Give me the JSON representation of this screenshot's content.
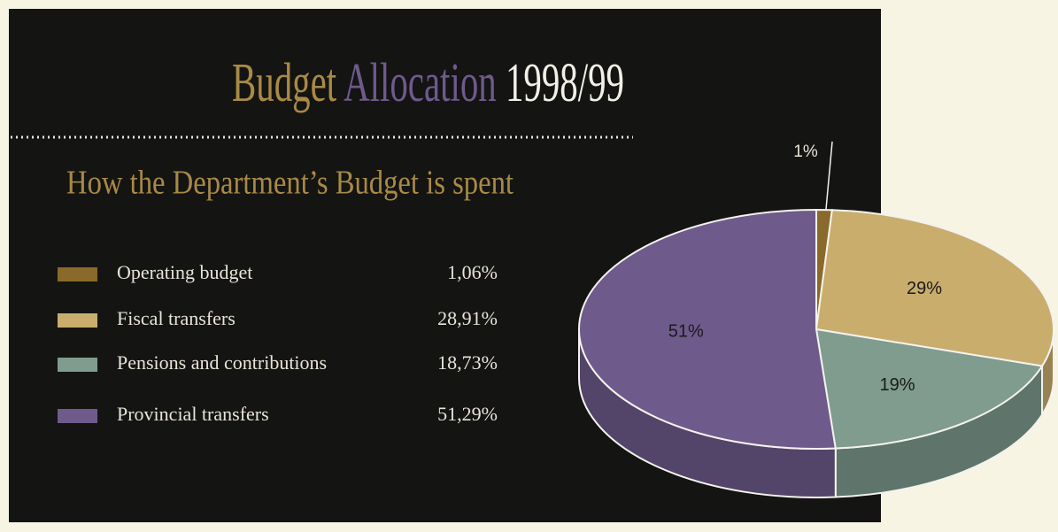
{
  "chart_data": {
    "type": "pie",
    "title": [
      {
        "text": "Budget",
        "color": "#a98a45"
      },
      {
        "text": "Allocation",
        "color": "#6e5a8c"
      },
      {
        "text": "1998/99",
        "color": "#f2efe6"
      }
    ],
    "subtitle": "How the Department’s Budget is spent",
    "categories": [
      "Operating budget",
      "Fiscal transfers",
      "Pensions and contributions",
      "Provincial transfers"
    ],
    "values": [
      1.06,
      28.91,
      18.73,
      51.29
    ],
    "value_labels": [
      "1,06%",
      "28,91%",
      "18,73%",
      "51,29%"
    ],
    "slice_labels": [
      "1%",
      "29%",
      "19%",
      "51%"
    ],
    "colors": [
      "#8a6a2a",
      "#c9ad6d",
      "#7f9c8e",
      "#6f5a8c"
    ]
  }
}
